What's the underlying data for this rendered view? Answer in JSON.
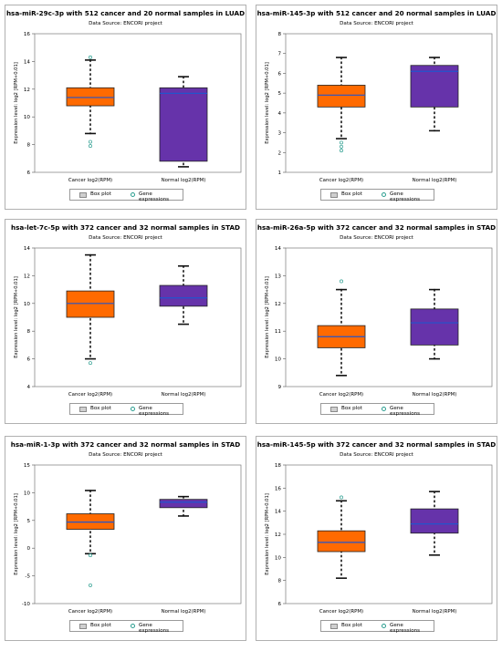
{
  "colors": {
    "cancer_fill": "#ff6a00",
    "normal_fill": "#6633aa",
    "median": "#2255cc",
    "outlier": "#2a9d8f",
    "whisker": "#111111",
    "grid": "#d8d8d8"
  },
  "legend": {
    "box_label": "Box plot",
    "points_label": "Gene expressions"
  },
  "charts": [
    {
      "title": "hsa-miR-29c-3p with 512 cancer and 20 normal samples in LUAD",
      "subtitle": "Data Source: ENCORI project",
      "ylabel": "Expression level: log2 [RPM+0.01]",
      "yticks": [
        "6",
        "8",
        "10",
        "12",
        "14",
        "16"
      ]
    },
    {
      "title": "hsa-miR-145-3p with 512 cancer and 20 normal samples in LUAD",
      "subtitle": "Data Source: ENCORI project",
      "ylabel": "Expression level: log2 [RPM+0.01]",
      "yticks": [
        "1",
        "2",
        "3",
        "4",
        "5",
        "6",
        "7",
        "8"
      ]
    },
    {
      "title": "hsa-let-7c-5p with 372 cancer and 32 normal samples in STAD",
      "subtitle": "Data Source: ENCORI project",
      "ylabel": "Expression level: log2 [RPM+0.01]",
      "yticks": [
        "4",
        "6",
        "8",
        "10",
        "12",
        "14"
      ]
    },
    {
      "title": "hsa-miR-26a-5p with 372 cancer and 32 normal samples in STAD",
      "subtitle": "Data Source: ENCORI project",
      "ylabel": "Expression level: log2 [RPM+0.01]",
      "yticks": [
        "9",
        "10",
        "11",
        "12",
        "13",
        "14"
      ]
    },
    {
      "title": "hsa-miR-1-3p with 372 cancer and 32 normal samples in STAD",
      "subtitle": "Data Source: ENCORI project",
      "ylabel": "Expression level: log2 [RPM+0.01]",
      "yticks": [
        "-10",
        "-5",
        "0",
        "5",
        "10",
        "15"
      ]
    },
    {
      "title": "hsa-miR-145-5p with 372 cancer and 32 normal samples in STAD",
      "subtitle": "Data Source: ENCORI project",
      "ylabel": "Expression level: log2 [RPM+0.01]",
      "yticks": [
        "6",
        "8",
        "10",
        "12",
        "14",
        "16",
        "18"
      ]
    }
  ],
  "chart_data": [
    {
      "type": "box",
      "categories": [
        "Cancer log2(RPM)",
        "Normal log2(RPM)"
      ],
      "ylim": [
        6,
        16
      ],
      "legend": "bottom-center",
      "grid": false,
      "series": [
        {
          "name": "Cancer log2(RPM)",
          "min": 8.8,
          "q1": 10.8,
          "median": 11.4,
          "q3": 12.1,
          "max": 14.1,
          "outliers": [
            14.3,
            8.2,
            7.9
          ]
        },
        {
          "name": "Normal log2(RPM)",
          "min": 6.4,
          "q1": 6.8,
          "median": 11.7,
          "q3": 12.1,
          "max": 12.9,
          "outliers": []
        }
      ]
    },
    {
      "type": "box",
      "categories": [
        "Cancer log2(RPM)",
        "Normal log2(RPM)"
      ],
      "ylim": [
        1,
        8
      ],
      "legend": "bottom-center",
      "grid": false,
      "series": [
        {
          "name": "Cancer log2(RPM)",
          "min": 2.7,
          "q1": 4.3,
          "median": 4.9,
          "q3": 5.4,
          "max": 6.8,
          "outliers": [
            2.5,
            2.3,
            2.1
          ]
        },
        {
          "name": "Normal log2(RPM)",
          "min": 3.1,
          "q1": 4.3,
          "median": 6.1,
          "q3": 6.4,
          "max": 6.8,
          "outliers": []
        }
      ]
    },
    {
      "type": "box",
      "categories": [
        "Cancer log2(RPM)",
        "Normal log2(RPM)"
      ],
      "ylim": [
        4,
        14
      ],
      "legend": "bottom-center",
      "grid": false,
      "series": [
        {
          "name": "Cancer log2(RPM)",
          "min": 6.0,
          "q1": 9.0,
          "median": 10.0,
          "q3": 10.9,
          "max": 13.5,
          "outliers": [
            5.7
          ]
        },
        {
          "name": "Normal log2(RPM)",
          "min": 8.5,
          "q1": 9.8,
          "median": 10.4,
          "q3": 11.3,
          "max": 12.7,
          "outliers": []
        }
      ]
    },
    {
      "type": "box",
      "categories": [
        "Cancer log2(RPM)",
        "Normal log2(RPM)"
      ],
      "ylim": [
        9,
        14
      ],
      "legend": "bottom-center",
      "grid": false,
      "series": [
        {
          "name": "Cancer log2(RPM)",
          "min": 9.4,
          "q1": 10.4,
          "median": 10.8,
          "q3": 11.2,
          "max": 12.5,
          "outliers": [
            12.8
          ]
        },
        {
          "name": "Normal log2(RPM)",
          "min": 10.0,
          "q1": 10.5,
          "median": 11.3,
          "q3": 11.8,
          "max": 12.5,
          "outliers": []
        }
      ]
    },
    {
      "type": "box",
      "categories": [
        "Cancer log2(RPM)",
        "Normal log2(RPM)"
      ],
      "ylim": [
        -10,
        15
      ],
      "legend": "bottom-center",
      "grid": false,
      "series": [
        {
          "name": "Cancer log2(RPM)",
          "min": -1.0,
          "q1": 3.4,
          "median": 4.7,
          "q3": 6.2,
          "max": 10.4,
          "outliers": [
            -1.3,
            -6.7
          ]
        },
        {
          "name": "Normal log2(RPM)",
          "min": 5.8,
          "q1": 7.3,
          "median": 8.3,
          "q3": 8.8,
          "max": 9.3,
          "outliers": []
        }
      ]
    },
    {
      "type": "box",
      "categories": [
        "Cancer log2(RPM)",
        "Normal log2(RPM)"
      ],
      "ylim": [
        6,
        18
      ],
      "legend": "bottom-center",
      "grid": false,
      "series": [
        {
          "name": "Cancer log2(RPM)",
          "min": 8.2,
          "q1": 10.5,
          "median": 11.3,
          "q3": 12.3,
          "max": 14.9,
          "outliers": [
            15.2
          ]
        },
        {
          "name": "Normal log2(RPM)",
          "min": 10.2,
          "q1": 12.1,
          "median": 12.9,
          "q3": 14.2,
          "max": 15.7,
          "outliers": []
        }
      ]
    }
  ]
}
